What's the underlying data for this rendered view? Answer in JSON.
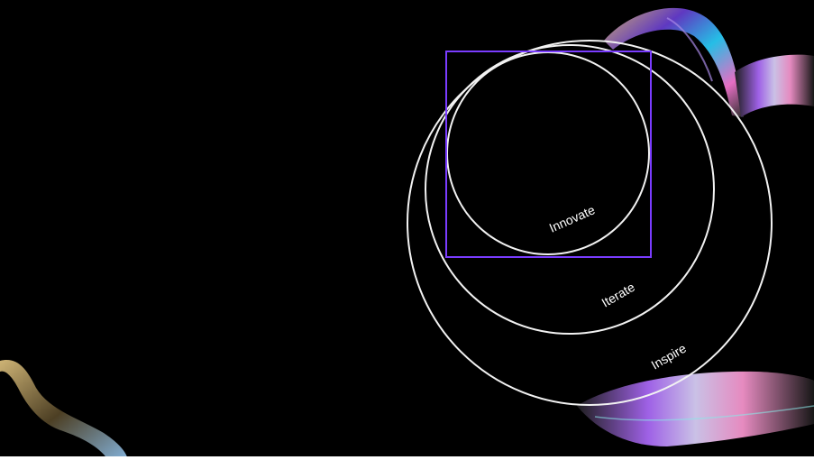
{
  "diagram": {
    "type": "nested-circles",
    "rings": [
      {
        "label": "Innovate"
      },
      {
        "label": "Iterate"
      },
      {
        "label": "Inspire"
      }
    ],
    "colors": {
      "background": "#000000",
      "ring_stroke": "#f2f2f2",
      "highlight_box": "#7a3cff",
      "text": "#ffffff"
    }
  }
}
